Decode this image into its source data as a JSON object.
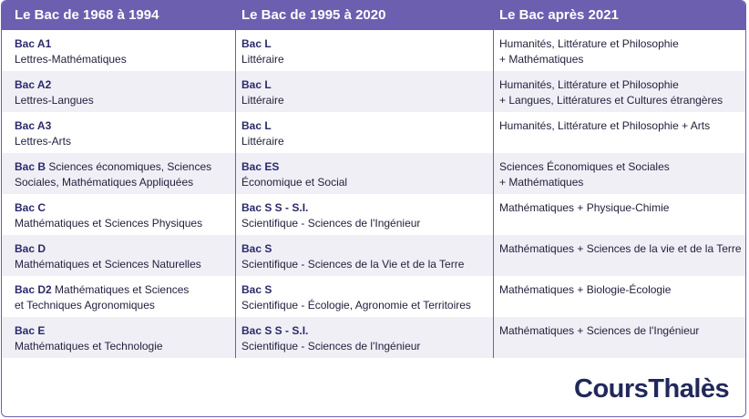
{
  "headers": [
    "Le Bac de 1968 à 1994",
    "Le Bac de 1995 à 2020",
    "Le Bac après 2021"
  ],
  "rows": [
    {
      "c1": {
        "bold": "Bac A1",
        "text": "Lettres-Mathématiques"
      },
      "c2": {
        "bold": "Bac L",
        "text": "Littéraire"
      },
      "c3": {
        "l1": "Humanités, Littérature et Philosophie",
        "l2": "+ Mathématiques"
      }
    },
    {
      "c1": {
        "bold": "Bac A2",
        "text": "Lettres-Langues"
      },
      "c2": {
        "bold": "Bac L",
        "text": "Littéraire"
      },
      "c3": {
        "l1": "Humanités, Littérature et Philosophie",
        "l2": "+ Langues, Littératures et Cultures étrangères"
      }
    },
    {
      "c1": {
        "bold": "Bac A3",
        "text": "Lettres-Arts"
      },
      "c2": {
        "bold": "Bac L",
        "text": "Littéraire"
      },
      "c3": {
        "l1": "Humanités, Littérature et Philosophie + Arts",
        "l2": ""
      }
    },
    {
      "c1": {
        "bold": "Bac B",
        "inline": " Sciences économiques, Sciences",
        "text": "Sociales, Mathématiques Appliquées"
      },
      "c2": {
        "bold": "Bac ES",
        "text": "Économique et Social"
      },
      "c3": {
        "l1": "Sciences Économiques et Sociales",
        "l2": "+ Mathématiques"
      }
    },
    {
      "c1": {
        "bold": "Bac C",
        "text": "Mathématiques et Sciences Physiques"
      },
      "c2": {
        "bold": "Bac S S - S.I.",
        "text": "Scientifique - Sciences de l'Ingénieur"
      },
      "c3": {
        "l1": "Mathématiques + Physique-Chimie",
        "l2": ""
      }
    },
    {
      "c1": {
        "bold": "Bac D",
        "text": "Mathématiques et Sciences Naturelles"
      },
      "c2": {
        "bold": "Bac S",
        "text": "Scientifique - Sciences de la Vie et de la Terre"
      },
      "c3": {
        "l1": "Mathématiques + Sciences de la vie et de la Terre",
        "l2": ""
      }
    },
    {
      "c1": {
        "bold": "Bac D2",
        "inline": " Mathématiques et Sciences",
        "text": "et Techniques Agronomiques"
      },
      "c2": {
        "bold": "Bac S",
        "text": "Scientifique - Écologie, Agronomie et Territoires"
      },
      "c3": {
        "l1": "Mathématiques + Biologie-Écologie",
        "l2": ""
      }
    },
    {
      "c1": {
        "bold": "Bac E",
        "text": "Mathématiques et Technologie"
      },
      "c2": {
        "bold": "Bac S S - S.I.",
        "text": "Scientifique - Sciences de l'Ingénieur"
      },
      "c3": {
        "l1": "Mathématiques + Sciences de l'Ingénieur",
        "l2": ""
      }
    }
  ],
  "logo": "CoursThalès",
  "colors": {
    "accent": "#6d5fb0",
    "row_alt": "#f0eff6",
    "text": "#1f1f3a",
    "logo": "#22285a"
  }
}
